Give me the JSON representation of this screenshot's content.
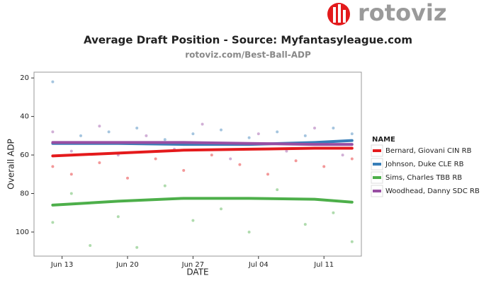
{
  "logo": "rotoviz",
  "chart_data": {
    "type": "line",
    "title": "Average Draft Position - Source: Myfantasyleague.com",
    "subtitle": "rotoviz.com/Best-Ball-ADP",
    "x_label": "DATE",
    "y_label": "Overall ADP",
    "legend_title": "NAME",
    "x": [
      "06-12",
      "06-19",
      "06-26",
      "07-03",
      "07-10",
      "07-14"
    ],
    "xlim": [
      "06-10",
      "07-15"
    ],
    "xticks": [
      {
        "value": "06-13",
        "label": "Jun 13"
      },
      {
        "value": "06-20",
        "label": "Jun 20"
      },
      {
        "value": "06-27",
        "label": "Jun 27"
      },
      {
        "value": "07-04",
        "label": "Jul 04"
      },
      {
        "value": "07-11",
        "label": "Jul 11"
      }
    ],
    "ylim": [
      112.5,
      17
    ],
    "yticks": [
      20,
      40,
      60,
      80,
      100
    ],
    "series": [
      {
        "name": "Bernard, Giovani CIN RB",
        "color": "#e41a1c",
        "values": [
          60.5,
          59,
          57.5,
          57,
          56.5,
          56.5
        ],
        "points": {
          "x": [
            "06-12",
            "06-14",
            "06-17",
            "06-20",
            "06-23",
            "06-26",
            "06-29",
            "07-02",
            "07-05",
            "07-08",
            "07-11",
            "07-14"
          ],
          "values": [
            66,
            70,
            64,
            72,
            62,
            68,
            60,
            65,
            70,
            63,
            66,
            62
          ]
        }
      },
      {
        "name": "Johnson, Duke CLE RB",
        "color": "#377eb8",
        "values": [
          54,
          54,
          54.5,
          54.5,
          53.5,
          52.5
        ],
        "points": {
          "x": [
            "06-12",
            "06-15",
            "06-18",
            "06-21",
            "06-24",
            "06-27",
            "06-30",
            "07-03",
            "07-06",
            "07-09",
            "07-12",
            "07-14"
          ],
          "values": [
            22,
            50,
            48,
            46,
            52,
            49,
            47,
            51,
            48,
            50,
            46,
            49
          ]
        }
      },
      {
        "name": "Sims, Charles TBB RB",
        "color": "#4daf4a",
        "values": [
          86,
          84,
          82.5,
          82.5,
          83,
          84.5
        ],
        "points": {
          "x": [
            "06-12",
            "06-14",
            "06-16",
            "06-19",
            "06-21",
            "06-24",
            "06-27",
            "06-30",
            "07-03",
            "07-06",
            "07-09",
            "07-12",
            "07-14"
          ],
          "values": [
            95,
            80,
            107,
            92,
            108,
            76,
            94,
            88,
            100,
            78,
            96,
            90,
            105
          ]
        }
      },
      {
        "name": "Woodhead, Danny SDC RB",
        "color": "#984ea3",
        "values": [
          53.5,
          53.5,
          53.5,
          54,
          54.5,
          54.5
        ],
        "points": {
          "x": [
            "06-12",
            "06-14",
            "06-17",
            "06-19",
            "06-22",
            "06-25",
            "06-28",
            "07-01",
            "07-04",
            "07-07",
            "07-10",
            "07-13"
          ],
          "values": [
            48,
            58,
            45,
            60,
            50,
            57,
            44,
            62,
            49,
            58,
            46,
            60
          ]
        }
      }
    ]
  }
}
